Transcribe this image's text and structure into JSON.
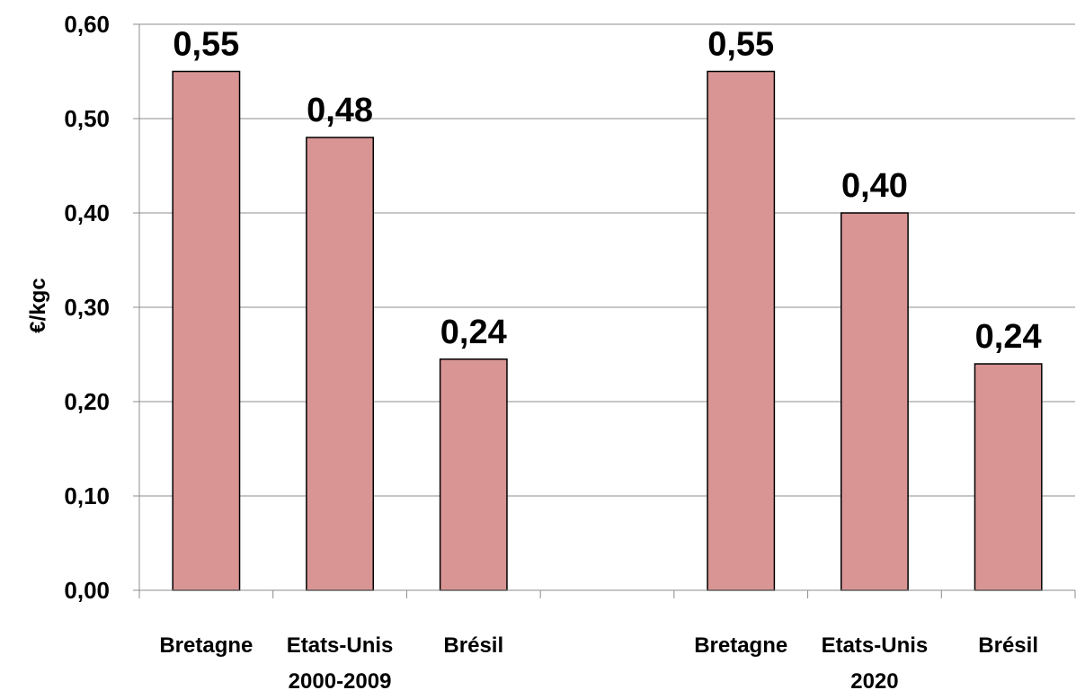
{
  "chart_data": {
    "type": "bar",
    "ylabel": "€/kgc",
    "ylim": [
      0,
      0.6
    ],
    "y_ticks": [
      "0,00",
      "0,10",
      "0,20",
      "0,30",
      "0,40",
      "0,50",
      "0,60"
    ],
    "grid": true,
    "bar_color": "#d99594",
    "groups": [
      {
        "label": "2000-2009",
        "categories": [
          "Bretagne",
          "Etats-Unis",
          "Brésil"
        ],
        "values": [
          0.55,
          0.48,
          0.245
        ],
        "value_labels": [
          "0,55",
          "0,48",
          "0,24"
        ]
      },
      {
        "label": "2020",
        "categories": [
          "Bretagne",
          "Etats-Unis",
          "Brésil"
        ],
        "values": [
          0.55,
          0.4,
          0.24
        ],
        "value_labels": [
          "0,55",
          "0,40",
          "0,24"
        ]
      }
    ]
  }
}
